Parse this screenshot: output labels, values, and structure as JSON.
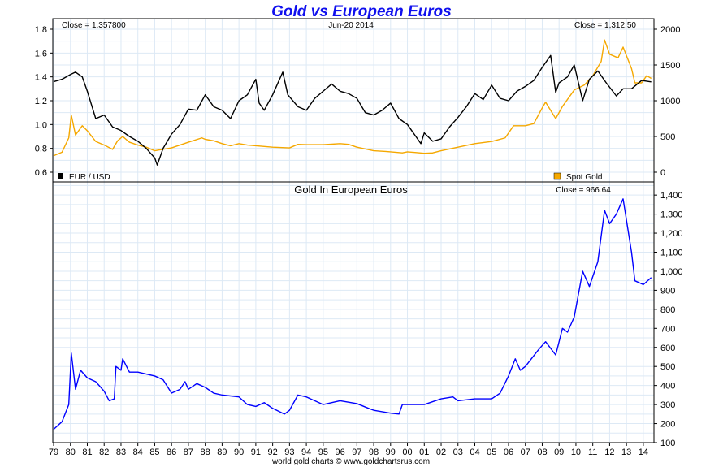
{
  "chart_data": [
    {
      "type": "line",
      "title": "Gold vs European Euros",
      "date_label": "Jun-20 2014",
      "left_close_label": "Close = 1.357800",
      "right_close_label": "Close = 1,312.50",
      "x_axis": {
        "type": "year",
        "range": [
          1979,
          2014.5
        ]
      },
      "y_left": {
        "range": [
          0.55,
          1.85
        ],
        "ticks": [
          "0.6",
          "0.8",
          "1.0",
          "1.2",
          "1.4",
          "1.6",
          "1.8"
        ]
      },
      "y_right": {
        "range": [
          -50,
          2100
        ],
        "ticks": [
          "0",
          "500",
          "1000",
          "1500",
          "2000"
        ]
      },
      "grid": true,
      "series": [
        {
          "name": "EUR / USD",
          "axis": "left",
          "color": "#000000",
          "x": [
            1979,
            1979.5,
            1980,
            1980.3,
            1980.7,
            1981,
            1981.5,
            1982,
            1982.5,
            1983,
            1983.5,
            1984,
            1984.5,
            1985,
            1985.15,
            1985.5,
            1986,
            1986.5,
            1987,
            1987.5,
            1988,
            1988.5,
            1989,
            1989.5,
            1990,
            1990.5,
            1991,
            1991.2,
            1991.5,
            1992,
            1992.6,
            1992.9,
            1993.5,
            1994,
            1994.5,
            1995,
            1995.5,
            1996,
            1996.5,
            1997,
            1997.5,
            1998,
            1998.5,
            1999,
            1999.5,
            2000,
            2000.5,
            2000.8,
            2001,
            2001.5,
            2002,
            2002.5,
            2003,
            2003.5,
            2004,
            2004.5,
            2005,
            2005.5,
            2006,
            2006.5,
            2007,
            2007.5,
            2008,
            2008.5,
            2008.8,
            2009,
            2009.5,
            2009.9,
            2010.4,
            2010.8,
            2011.3,
            2011.8,
            2012.4,
            2012.8,
            2013.3,
            2013.9,
            2014.47
          ],
          "y": [
            1.36,
            1.38,
            1.42,
            1.44,
            1.4,
            1.28,
            1.05,
            1.08,
            0.98,
            0.95,
            0.9,
            0.86,
            0.8,
            0.72,
            0.66,
            0.8,
            0.92,
            1.0,
            1.13,
            1.12,
            1.25,
            1.15,
            1.12,
            1.05,
            1.2,
            1.25,
            1.38,
            1.18,
            1.12,
            1.25,
            1.44,
            1.25,
            1.15,
            1.12,
            1.22,
            1.28,
            1.34,
            1.28,
            1.26,
            1.22,
            1.1,
            1.08,
            1.12,
            1.18,
            1.05,
            1.0,
            0.9,
            0.84,
            0.93,
            0.86,
            0.88,
            0.98,
            1.06,
            1.15,
            1.26,
            1.21,
            1.33,
            1.22,
            1.2,
            1.28,
            1.32,
            1.37,
            1.48,
            1.58,
            1.27,
            1.35,
            1.4,
            1.5,
            1.2,
            1.38,
            1.45,
            1.35,
            1.24,
            1.3,
            1.3,
            1.37,
            1.358
          ]
        },
        {
          "name": "Spot Gold",
          "axis": "right",
          "color": "#F5A800",
          "x": [
            1979,
            1979.5,
            1979.9,
            1980.05,
            1980.3,
            1980.7,
            1981,
            1981.5,
            1982,
            1982.5,
            1982.8,
            1983.1,
            1983.5,
            1984,
            1984.5,
            1985,
            1985.5,
            1986,
            1986.5,
            1987,
            1987.8,
            1988,
            1988.5,
            1989,
            1989.5,
            1990,
            1990.5,
            1991,
            1992,
            1993,
            1993.5,
            1994,
            1995,
            1996,
            1996.5,
            1997,
            1998,
            1998.7,
            1999,
            1999.7,
            2000,
            2001,
            2001.5,
            2002,
            2003,
            2004,
            2005,
            2005.8,
            2006.3,
            2007,
            2007.5,
            2008,
            2008.2,
            2008.8,
            2009.2,
            2009.9,
            2010.5,
            2011,
            2011.5,
            2011.7,
            2012,
            2012.5,
            2012.8,
            2013.3,
            2013.5,
            2013.9,
            2014.2,
            2014.47
          ],
          "y": [
            230,
            280,
            480,
            800,
            520,
            650,
            580,
            430,
            380,
            320,
            440,
            500,
            420,
            380,
            350,
            300,
            320,
            340,
            380,
            420,
            480,
            460,
            440,
            400,
            370,
            400,
            380,
            370,
            350,
            340,
            390,
            385,
            385,
            400,
            390,
            350,
            300,
            290,
            285,
            270,
            285,
            265,
            270,
            300,
            350,
            400,
            430,
            480,
            650,
            650,
            680,
            900,
            980,
            750,
            920,
            1150,
            1220,
            1350,
            1550,
            1850,
            1650,
            1600,
            1750,
            1450,
            1250,
            1250,
            1350,
            1312.5
          ]
        }
      ]
    },
    {
      "type": "line",
      "title": "Gold In European Euros",
      "close_label": "Close = 966.64",
      "x_axis": {
        "type": "year",
        "range": [
          1979,
          2014.5
        ],
        "ticks": [
          "79",
          "80",
          "81",
          "82",
          "83",
          "84",
          "85",
          "86",
          "87",
          "88",
          "89",
          "90",
          "91",
          "92",
          "93",
          "94",
          "95",
          "96",
          "97",
          "98",
          "99",
          "00",
          "01",
          "02",
          "03",
          "04",
          "05",
          "06",
          "07",
          "08",
          "09",
          "10",
          "11",
          "12",
          "13",
          "14"
        ]
      },
      "y_right": {
        "range": [
          100,
          1450
        ],
        "ticks": [
          "100",
          "200",
          "300",
          "400",
          "500",
          "600",
          "700",
          "800",
          "900",
          "1,000",
          "1,100",
          "1,200",
          "1,300",
          "1,400"
        ]
      },
      "grid": true,
      "series": [
        {
          "color": "#0000FF",
          "x": [
            1979,
            1979.5,
            1979.9,
            1980.05,
            1980.3,
            1980.6,
            1981,
            1981.5,
            1982,
            1982.3,
            1982.6,
            1982.7,
            1983,
            1983.1,
            1983.5,
            1984,
            1984.5,
            1985,
            1985.5,
            1986,
            1986.5,
            1986.8,
            1987,
            1987.5,
            1988,
            1988.5,
            1989,
            1990,
            1990.5,
            1991,
            1991.5,
            1992,
            1992.7,
            1993,
            1993.5,
            1994,
            1995,
            1996,
            1997,
            1997.7,
            1998,
            1999,
            1999.5,
            1999.7,
            2000,
            2001,
            2002,
            2002.7,
            2003,
            2004,
            2005,
            2005.5,
            2006,
            2006.4,
            2006.7,
            2007,
            2007.8,
            2008.2,
            2008.8,
            2009.2,
            2009.5,
            2009.9,
            2010.4,
            2010.8,
            2011.3,
            2011.7,
            2012,
            2012.4,
            2012.8,
            2013.3,
            2013.5,
            2014,
            2014.47
          ],
          "y": [
            170,
            210,
            300,
            570,
            380,
            480,
            440,
            420,
            370,
            320,
            330,
            500,
            480,
            540,
            470,
            470,
            460,
            450,
            430,
            360,
            380,
            420,
            380,
            410,
            390,
            360,
            350,
            340,
            300,
            290,
            310,
            280,
            250,
            270,
            350,
            340,
            300,
            320,
            305,
            280,
            270,
            255,
            250,
            300,
            300,
            300,
            330,
            340,
            320,
            330,
            330,
            360,
            450,
            540,
            480,
            500,
            590,
            630,
            560,
            700,
            680,
            760,
            1000,
            920,
            1050,
            1320,
            1250,
            1300,
            1380,
            1100,
            950,
            930,
            966.64
          ]
        }
      ]
    }
  ],
  "footer": "world gold charts © www.goldchartsrus.com"
}
